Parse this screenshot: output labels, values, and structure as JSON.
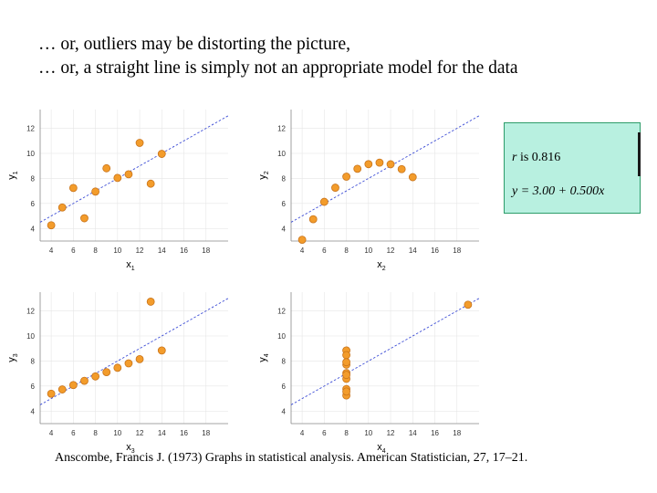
{
  "slide": {
    "title_line1": "… or, outliers may be distorting the picture,",
    "title_line2": "… or, a straight line is simply not an appropriate model for the data",
    "stats": {
      "r_label": "r",
      "r_text": "is 0.816",
      "equation": "y = 3.00 + 0.500x"
    },
    "citation": "Anscombe, Francis J. (1973) Graphs in statistical analysis. American Statistician, 27, 17–21."
  },
  "colors": {
    "point_fill": "#f39c2b",
    "point_stroke": "#c8731a",
    "fit_line": "#3f4fd6",
    "grid": "#e6e6e6",
    "axis": "#888888"
  },
  "chart_data": [
    {
      "type": "scatter",
      "xlabel": "x",
      "xlabel_sub": "1",
      "ylabel": "y",
      "ylabel_sub": "1",
      "xlim": [
        3,
        20
      ],
      "ylim": [
        3,
        13.5
      ],
      "xticks": [
        4,
        6,
        8,
        10,
        12,
        14,
        16,
        18
      ],
      "yticks": [
        4,
        6,
        8,
        10,
        12
      ],
      "fit": {
        "intercept": 3.0,
        "slope": 0.5
      },
      "x": [
        10,
        8,
        13,
        9,
        11,
        14,
        6,
        4,
        12,
        7,
        5
      ],
      "y": [
        8.04,
        6.95,
        7.58,
        8.81,
        8.33,
        9.96,
        7.24,
        4.26,
        10.84,
        4.82,
        5.68
      ]
    },
    {
      "type": "scatter",
      "xlabel": "x",
      "xlabel_sub": "2",
      "ylabel": "y",
      "ylabel_sub": "2",
      "xlim": [
        3,
        20
      ],
      "ylim": [
        3,
        13.5
      ],
      "xticks": [
        4,
        6,
        8,
        10,
        12,
        14,
        16,
        18
      ],
      "yticks": [
        4,
        6,
        8,
        10,
        12
      ],
      "fit": {
        "intercept": 3.0,
        "slope": 0.5
      },
      "x": [
        10,
        8,
        13,
        9,
        11,
        14,
        6,
        4,
        12,
        7,
        5
      ],
      "y": [
        9.14,
        8.14,
        8.74,
        8.77,
        9.26,
        8.1,
        6.13,
        3.1,
        9.13,
        7.26,
        4.74
      ]
    },
    {
      "type": "scatter",
      "xlabel": "x",
      "xlabel_sub": "3",
      "ylabel": "y",
      "ylabel_sub": "3",
      "xlim": [
        3,
        20
      ],
      "ylim": [
        3,
        13.5
      ],
      "xticks": [
        4,
        6,
        8,
        10,
        12,
        14,
        16,
        18
      ],
      "yticks": [
        4,
        6,
        8,
        10,
        12
      ],
      "fit": {
        "intercept": 3.0,
        "slope": 0.5
      },
      "x": [
        10,
        8,
        13,
        9,
        11,
        14,
        6,
        4,
        12,
        7,
        5
      ],
      "y": [
        7.46,
        6.77,
        12.74,
        7.11,
        7.81,
        8.84,
        6.08,
        5.39,
        8.15,
        6.42,
        5.73
      ]
    },
    {
      "type": "scatter",
      "xlabel": "x",
      "xlabel_sub": "4",
      "ylabel": "y",
      "ylabel_sub": "4",
      "xlim": [
        3,
        20
      ],
      "ylim": [
        3,
        13.5
      ],
      "xticks": [
        4,
        6,
        8,
        10,
        12,
        14,
        16,
        18
      ],
      "yticks": [
        4,
        6,
        8,
        10,
        12
      ],
      "fit": {
        "intercept": 3.0,
        "slope": 0.5
      },
      "x": [
        8,
        8,
        8,
        8,
        8,
        8,
        8,
        19,
        8,
        8,
        8
      ],
      "y": [
        6.58,
        5.76,
        7.71,
        8.84,
        8.47,
        7.04,
        5.25,
        12.5,
        5.56,
        7.91,
        6.89
      ]
    }
  ]
}
